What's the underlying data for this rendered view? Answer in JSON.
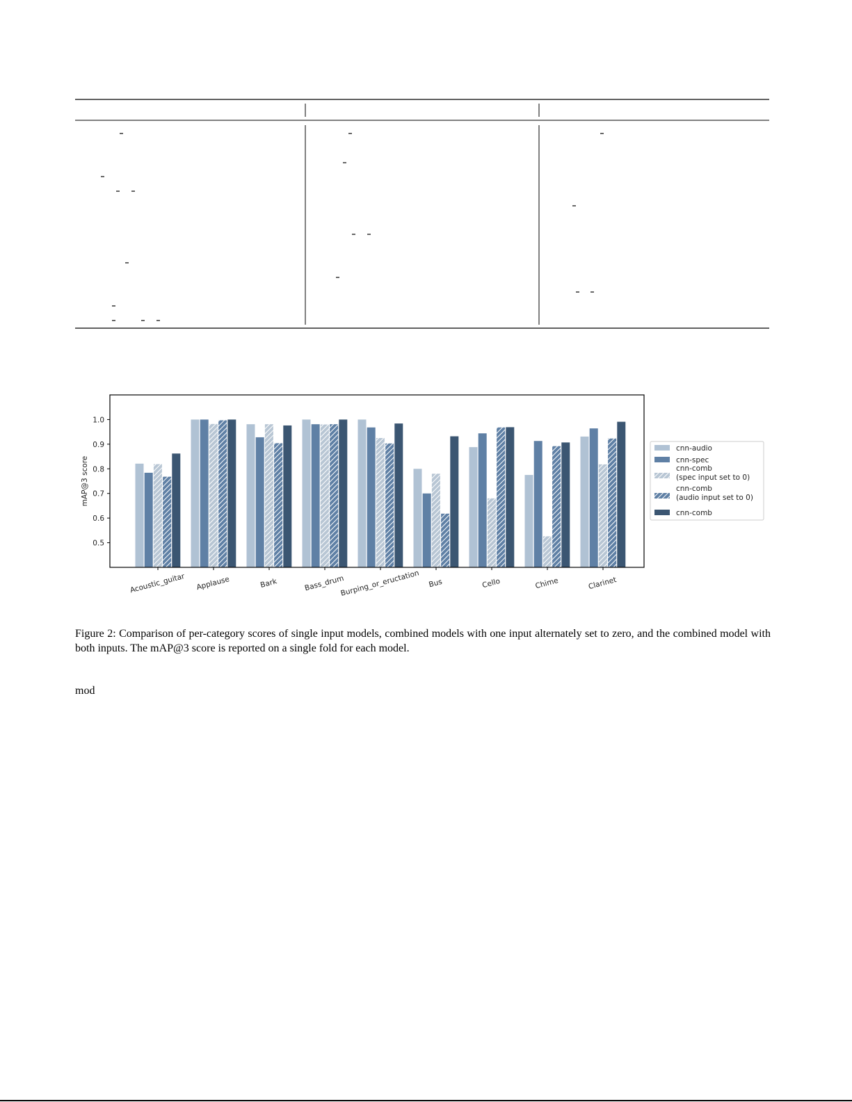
{
  "chart_data": {
    "type": "bar",
    "title": "",
    "xlabel": "",
    "ylabel": "mAP@3 score",
    "ylim": [
      0.4,
      1.1
    ],
    "yticks": [
      0.5,
      0.6,
      0.7,
      0.8,
      0.9,
      1.0
    ],
    "ytick_labels": [
      "0.5",
      "0.6",
      "0.7",
      "0.8",
      "0.9",
      "1.0"
    ],
    "grid": false,
    "legend_position": "right",
    "categories": [
      "Acoustic_guitar",
      "Applause",
      "Bark",
      "Bass_drum",
      "Burping_or_eructation",
      "Bus",
      "Cello",
      "Chime",
      "Clarinet"
    ],
    "series": [
      {
        "name": "cnn-audio",
        "color": "#b0c2d4",
        "hatched": false,
        "values": [
          0.821,
          1.0,
          0.981,
          1.0,
          1.0,
          0.8,
          0.888,
          0.775,
          0.931
        ]
      },
      {
        "name": "cnn-spec",
        "color": "#5f80a5",
        "hatched": false,
        "values": [
          0.784,
          1.0,
          0.928,
          0.981,
          0.968,
          0.7,
          0.944,
          0.913,
          0.964
        ]
      },
      {
        "name": "cnn-comb\n(spec input set to 0)",
        "color": "#b8c6d4",
        "hatched": true,
        "values": [
          0.819,
          0.982,
          0.981,
          0.98,
          0.925,
          0.78,
          0.68,
          0.526,
          0.818
        ]
      },
      {
        "name": "cnn-comb\n(audio input set to 0)",
        "color": "#5f80a5",
        "hatched": true,
        "values": [
          0.768,
          0.997,
          0.904,
          0.981,
          0.903,
          0.618,
          0.968,
          0.892,
          0.923
        ]
      },
      {
        "name": "cnn-comb",
        "color": "#3b5672",
        "hatched": false,
        "values": [
          0.862,
          1.0,
          0.976,
          1.0,
          0.984,
          0.932,
          0.969,
          0.907,
          0.991
        ]
      }
    ]
  },
  "figure": {
    "caption": "Figure 2: Comparison of per-category scores of single input models, combined models with one input alternately set to zero, and the combined model with both inputs. The mAP@3 score is reported on a single fold for each model."
  },
  "body": {
    "fragment": "mod"
  }
}
